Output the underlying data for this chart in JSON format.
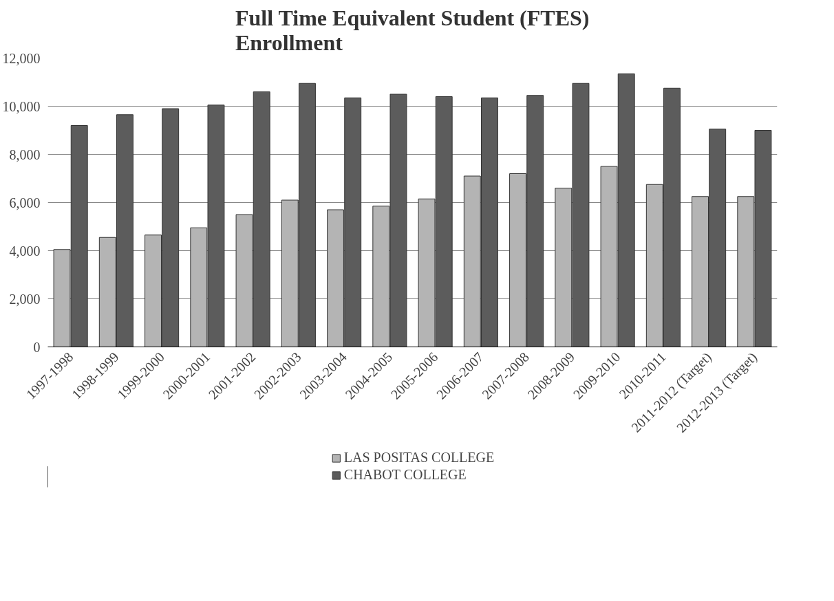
{
  "chart_data": {
    "type": "bar",
    "title": "Full Time Equivalent Student (FTES)\nEnrollment",
    "categories": [
      "1997-1998",
      "1998-1999",
      "1999-2000",
      "2000-2001",
      "2001-2002",
      "2002-2003",
      "2003-2004",
      "2004-2005",
      "2005-2006",
      "2006-2007",
      "2007-2008",
      "2008-2009",
      "2009-2010",
      "2010-2011",
      "2011-2012 (Target)",
      "2012-2013 (Target)"
    ],
    "series": [
      {
        "name": "LAS POSITAS COLLEGE",
        "color": "#b4b4b4",
        "values": [
          4050,
          4550,
          4650,
          4950,
          5500,
          6100,
          5700,
          5850,
          6150,
          7100,
          7200,
          6600,
          7500,
          6750,
          6250,
          6250
        ]
      },
      {
        "name": "CHABOT COLLEGE",
        "color": "#5c5c5c",
        "values": [
          9200,
          9650,
          9900,
          10050,
          10600,
          10950,
          10350,
          10500,
          10400,
          10350,
          10450,
          10950,
          11350,
          10750,
          9050,
          9000
        ]
      }
    ],
    "ylim": [
      0,
      12000
    ],
    "yticks": [
      {
        "value": 0,
        "label": "0"
      },
      {
        "value": 2000,
        "label": "2,000"
      },
      {
        "value": 4000,
        "label": "4,000"
      },
      {
        "value": 6000,
        "label": "6,000"
      },
      {
        "value": 8000,
        "label": "8,000"
      },
      {
        "value": 10000,
        "label": "10,000"
      },
      {
        "value": 12000,
        "label": "12,000"
      }
    ],
    "grid": "y",
    "legend": "bottom"
  }
}
